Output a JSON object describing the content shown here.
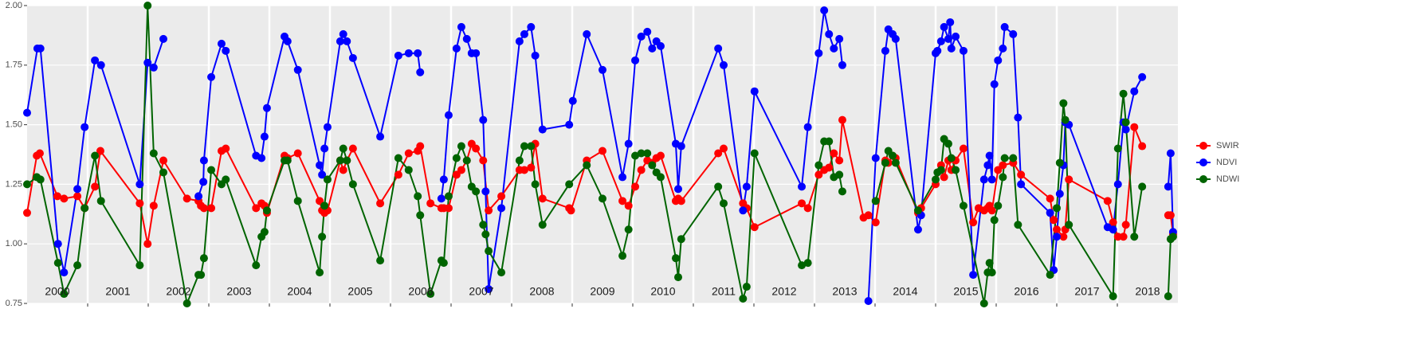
{
  "chart_data": {
    "type": "line",
    "xlim": [
      2000,
      2019
    ],
    "xticks": [
      2001,
      2002,
      2003,
      2004,
      2005,
      2006,
      2007,
      2008,
      2009,
      2010,
      2011,
      2012,
      2013,
      2014,
      2015,
      2016,
      2017,
      2018
    ],
    "ylim": [
      0.75,
      2.0
    ],
    "yticks": [
      0.75,
      {
        "value": 1.0,
        "label": "1.00"
      },
      1.25,
      {
        "value": 1.5,
        "label": "1.50"
      },
      1.75,
      {
        "value": 2.0,
        "label": "2.00"
      }
    ],
    "grid": true,
    "legend": "right",
    "year_labels": [
      "2000",
      "2001",
      "2002",
      "2003",
      "2004",
      "2005",
      "2006",
      "2007",
      "2008",
      "2009",
      "2010",
      "2011",
      "2012",
      "2013",
      "2014",
      "2015",
      "2016",
      "2017",
      "2018"
    ],
    "series": [
      {
        "name": "SWIR",
        "color": "#ff0000",
        "x": [
          2000.0,
          2000.16,
          2000.21,
          2000.5,
          2000.61,
          2000.83,
          2000.95,
          2001.12,
          2001.21,
          2001.86,
          2001.99,
          2002.09,
          2002.25,
          2002.64,
          2002.83,
          2002.87,
          2002.92,
          2003.04,
          2003.21,
          2003.28,
          2003.78,
          2003.87,
          2003.92,
          2003.96,
          2004.25,
          2004.3,
          2004.47,
          2004.83,
          2004.87,
          2004.91,
          2004.96,
          2005.17,
          2005.22,
          2005.28,
          2005.38,
          2005.83,
          2006.13,
          2006.3,
          2006.45,
          2006.49,
          2006.66,
          2006.84,
          2006.88,
          2006.96,
          2007.09,
          2007.17,
          2007.26,
          2007.34,
          2007.41,
          2007.53,
          2007.62,
          2007.83,
          2008.13,
          2008.21,
          2008.32,
          2008.39,
          2008.51,
          2008.95,
          2008.98,
          2009.24,
          2009.5,
          2009.83,
          2009.93,
          2010.04,
          2010.14,
          2010.24,
          2010.32,
          2010.39,
          2010.46,
          2010.71,
          2010.75,
          2010.8,
          2011.41,
          2011.5,
          2011.82,
          2011.88,
          2012.01,
          2012.79,
          2012.89,
          2013.07,
          2013.16,
          2013.24,
          2013.32,
          2013.41,
          2013.46,
          2013.81,
          2013.89,
          2014.01,
          2014.17,
          2014.22,
          2014.29,
          2014.34,
          2014.71,
          2014.76,
          2015.0,
          2015.09,
          2015.14,
          2015.21,
          2015.26,
          2015.33,
          2015.46,
          2015.62,
          2015.71,
          2015.8,
          2015.86,
          2015.89,
          2015.93,
          2016.03,
          2016.11,
          2016.28,
          2016.41,
          2016.89,
          2016.95,
          2017.0,
          2017.11,
          2017.14,
          2017.2,
          2017.84,
          2017.93,
          2018.01,
          2018.1,
          2018.14,
          2018.28,
          2018.41,
          2018.62,
          2018.84,
          2018.88,
          2018.92
        ],
        "values": [
          1.13,
          1.37,
          1.38,
          1.2,
          1.19,
          1.2,
          1.15,
          1.24,
          1.39,
          1.17,
          1.0,
          1.16,
          1.35,
          1.19,
          1.18,
          1.16,
          1.15,
          1.15,
          1.39,
          1.4,
          1.15,
          1.17,
          1.16,
          1.13,
          1.37,
          1.36,
          1.38,
          1.18,
          1.14,
          1.13,
          1.14,
          1.35,
          1.31,
          1.35,
          1.4,
          1.17,
          1.29,
          1.38,
          1.39,
          1.41,
          1.17,
          1.15,
          1.15,
          1.15,
          1.29,
          1.31,
          1.35,
          1.42,
          1.4,
          1.35,
          1.14,
          1.2,
          1.31,
          1.31,
          1.32,
          1.42,
          1.19,
          1.15,
          1.14,
          1.35,
          1.39,
          1.18,
          1.16,
          1.24,
          1.31,
          1.35,
          1.34,
          1.36,
          1.37,
          1.18,
          1.19,
          1.18,
          1.38,
          1.4,
          1.17,
          1.15,
          1.07,
          1.17,
          1.15,
          1.29,
          1.31,
          1.32,
          1.38,
          1.35,
          1.52,
          1.11,
          1.12,
          1.09,
          1.35,
          1.34,
          1.37,
          1.36,
          1.13,
          1.15,
          1.25,
          1.33,
          1.28,
          1.35,
          1.31,
          1.35,
          1.4,
          1.09,
          1.15,
          1.14,
          1.15,
          1.16,
          1.14,
          1.31,
          1.33,
          1.34,
          1.29,
          1.19,
          1.1,
          1.06,
          1.03,
          1.06,
          1.27,
          1.18,
          1.09,
          1.03,
          1.03,
          1.08,
          1.49,
          1.41,
          null,
          1.12,
          1.12,
          1.04
        ]
      },
      {
        "name": "NDVI",
        "color": "#0000ff",
        "x": [
          2000.0,
          2000.17,
          2000.22,
          2000.51,
          2000.61,
          2000.83,
          2000.95,
          2001.12,
          2001.22,
          2001.86,
          2001.99,
          2002.09,
          2002.25,
          2002.54,
          2002.83,
          2002.91,
          2002.92,
          2003.04,
          2003.21,
          2003.28,
          2003.78,
          2003.87,
          2003.92,
          2003.96,
          2004.25,
          2004.3,
          2004.47,
          2004.83,
          2004.87,
          2004.91,
          2004.96,
          2005.17,
          2005.22,
          2005.28,
          2005.38,
          2005.83,
          2006.13,
          2006.3,
          2006.45,
          2006.49,
          2006.66,
          2006.84,
          2006.88,
          2006.96,
          2007.09,
          2007.17,
          2007.26,
          2007.34,
          2007.41,
          2007.53,
          2007.57,
          2007.62,
          2007.83,
          2008.13,
          2008.21,
          2008.32,
          2008.39,
          2008.51,
          2008.95,
          2009.01,
          2009.24,
          2009.5,
          2009.83,
          2009.93,
          2010.04,
          2010.14,
          2010.24,
          2010.32,
          2010.39,
          2010.46,
          2010.71,
          2010.75,
          2010.8,
          2011.41,
          2011.5,
          2011.82,
          2011.88,
          2012.01,
          2012.79,
          2012.89,
          2013.07,
          2013.16,
          2013.24,
          2013.32,
          2013.41,
          2013.46,
          2013.68,
          2013.89,
          2014.01,
          2014.17,
          2014.22,
          2014.29,
          2014.34,
          2014.71,
          2014.76,
          2015.0,
          2015.03,
          2015.09,
          2015.14,
          2015.21,
          2015.24,
          2015.26,
          2015.33,
          2015.46,
          2015.62,
          2015.8,
          2015.86,
          2015.89,
          2015.93,
          2015.97,
          2016.03,
          2016.11,
          2016.14,
          2016.28,
          2016.36,
          2016.41,
          2016.89,
          2016.95,
          2017.0,
          2017.05,
          2017.11,
          2017.14,
          2017.2,
          2017.84,
          2017.93,
          2018.01,
          2018.1,
          2018.14,
          2018.28,
          2018.41,
          2018.62,
          2018.84,
          2018.88,
          2018.92
        ],
        "values": [
          1.55,
          1.82,
          1.82,
          1.0,
          0.88,
          1.23,
          1.49,
          1.77,
          1.75,
          1.25,
          1.76,
          1.74,
          1.86,
          null,
          1.2,
          1.26,
          1.35,
          1.7,
          1.84,
          1.81,
          1.37,
          1.36,
          1.45,
          1.57,
          1.87,
          1.85,
          1.73,
          1.33,
          1.29,
          1.4,
          1.49,
          1.85,
          1.88,
          1.85,
          1.78,
          1.45,
          1.79,
          1.8,
          1.8,
          1.72,
          null,
          1.19,
          1.27,
          1.54,
          1.82,
          1.91,
          1.86,
          1.8,
          1.8,
          1.52,
          1.22,
          0.81,
          1.15,
          1.85,
          1.88,
          1.91,
          1.79,
          1.48,
          1.5,
          1.6,
          1.88,
          1.73,
          1.28,
          1.42,
          1.77,
          1.87,
          1.89,
          1.82,
          1.85,
          1.83,
          1.42,
          1.23,
          1.41,
          1.82,
          1.75,
          1.14,
          1.24,
          1.64,
          1.24,
          1.49,
          1.8,
          1.98,
          1.88,
          1.82,
          1.86,
          1.75,
          null,
          0.76,
          1.36,
          1.81,
          1.9,
          1.88,
          1.86,
          1.06,
          1.12,
          1.8,
          1.81,
          1.85,
          1.91,
          1.86,
          1.93,
          1.82,
          1.87,
          1.81,
          0.87,
          1.27,
          1.33,
          1.37,
          1.27,
          1.67,
          1.77,
          1.82,
          1.91,
          1.88,
          1.53,
          1.25,
          1.13,
          0.89,
          1.03,
          1.21,
          1.33,
          1.51,
          1.5,
          1.07,
          1.06,
          1.25,
          1.51,
          1.48,
          1.64,
          1.7,
          null,
          1.24,
          1.38,
          1.05
        ]
      },
      {
        "name": "NDWI",
        "color": "#006400",
        "x": [
          2000.0,
          2000.16,
          2000.22,
          2000.51,
          2000.61,
          2000.83,
          2000.95,
          2001.12,
          2001.22,
          2001.86,
          2001.99,
          2002.09,
          2002.25,
          2002.64,
          2002.83,
          2002.87,
          2002.92,
          2003.04,
          2003.21,
          2003.28,
          2003.78,
          2003.87,
          2003.92,
          2003.96,
          2004.25,
          2004.3,
          2004.47,
          2004.83,
          2004.87,
          2004.91,
          2004.96,
          2005.17,
          2005.22,
          2005.28,
          2005.38,
          2005.83,
          2006.13,
          2006.3,
          2006.45,
          2006.49,
          2006.66,
          2006.84,
          2006.88,
          2006.96,
          2007.09,
          2007.17,
          2007.26,
          2007.34,
          2007.41,
          2007.53,
          2007.57,
          2007.62,
          2007.83,
          2008.13,
          2008.21,
          2008.32,
          2008.39,
          2008.51,
          2008.95,
          2009.24,
          2009.5,
          2009.83,
          2009.93,
          2010.04,
          2010.14,
          2010.24,
          2010.32,
          2010.39,
          2010.46,
          2010.71,
          2010.75,
          2010.8,
          2011.41,
          2011.5,
          2011.82,
          2011.88,
          2012.01,
          2012.79,
          2012.89,
          2013.07,
          2013.16,
          2013.24,
          2013.32,
          2013.41,
          2013.46,
          2013.68,
          2014.01,
          2014.17,
          2014.22,
          2014.29,
          2014.34,
          2014.71,
          2015.0,
          2015.03,
          2015.09,
          2015.14,
          2015.21,
          2015.26,
          2015.33,
          2015.46,
          2015.8,
          2015.86,
          2015.89,
          2015.93,
          2015.97,
          2016.03,
          2016.11,
          2016.14,
          2016.28,
          2016.36,
          2016.89,
          2017.0,
          2017.05,
          2017.11,
          2017.14,
          2017.2,
          2017.93,
          2018.01,
          2018.1,
          2018.14,
          2018.28,
          2018.41,
          2018.62,
          2018.84,
          2018.88,
          2018.92
        ],
        "values": [
          1.25,
          1.28,
          1.27,
          0.92,
          0.79,
          0.91,
          1.15,
          1.37,
          1.18,
          0.91,
          2.0,
          1.38,
          1.3,
          0.75,
          0.87,
          0.87,
          0.94,
          1.31,
          1.25,
          1.27,
          0.91,
          1.03,
          1.05,
          1.14,
          1.35,
          1.35,
          1.18,
          0.88,
          1.03,
          1.16,
          1.27,
          1.35,
          1.4,
          1.35,
          1.25,
          0.93,
          1.36,
          1.31,
          1.2,
          1.12,
          0.79,
          0.93,
          0.92,
          1.2,
          1.36,
          1.41,
          1.35,
          1.24,
          1.22,
          1.08,
          1.04,
          0.97,
          0.88,
          1.35,
          1.41,
          1.41,
          1.25,
          1.08,
          1.25,
          1.33,
          1.19,
          0.95,
          1.06,
          1.37,
          1.38,
          1.38,
          1.33,
          1.3,
          1.28,
          0.94,
          0.86,
          1.02,
          1.24,
          1.17,
          0.77,
          0.82,
          1.38,
          0.91,
          0.92,
          1.33,
          1.43,
          1.43,
          1.28,
          1.29,
          1.22,
          null,
          1.18,
          1.34,
          1.39,
          1.37,
          1.34,
          1.14,
          1.27,
          1.3,
          1.31,
          1.44,
          1.42,
          1.36,
          1.31,
          1.16,
          0.75,
          0.88,
          0.92,
          0.88,
          1.1,
          1.16,
          1.28,
          1.36,
          1.36,
          1.08,
          0.87,
          1.15,
          1.34,
          1.59,
          1.52,
          1.08,
          0.78,
          1.4,
          1.63,
          1.51,
          1.03,
          1.24,
          null,
          0.78,
          1.02,
          1.03
        ]
      }
    ]
  }
}
